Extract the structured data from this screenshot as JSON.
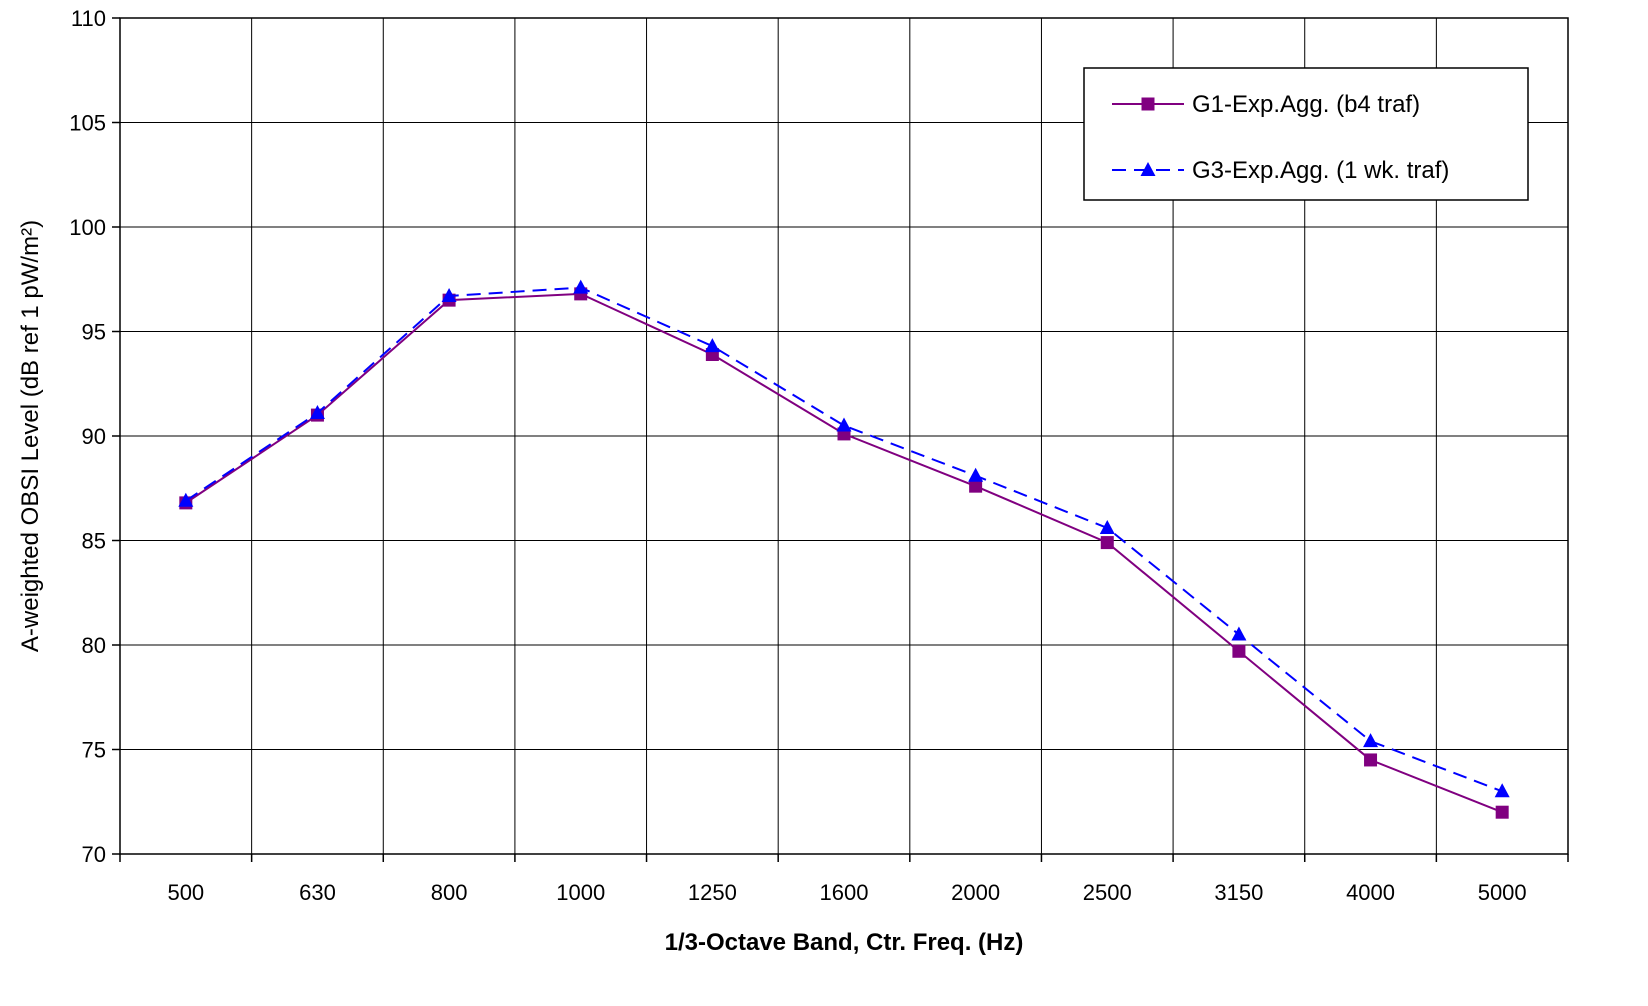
{
  "chart_data": {
    "type": "line",
    "title": "",
    "xlabel": "1/3-Octave Band, Ctr. Freq. (Hz)",
    "ylabel": "A-weighted OBSI Level (dB ref 1 pW/m²)",
    "categories": [
      "500",
      "630",
      "800",
      "1000",
      "1250",
      "1600",
      "2000",
      "2500",
      "3150",
      "4000",
      "5000"
    ],
    "ylim": [
      70,
      110
    ],
    "yticks": [
      "70",
      "75",
      "80",
      "85",
      "90",
      "95",
      "100",
      "105",
      "110"
    ],
    "grid": true,
    "legend_position": "top-right",
    "series": [
      {
        "name": "G1-Exp.Agg. (b4 traf)",
        "color": "#800080",
        "marker": "square",
        "line_style": "solid",
        "values": [
          86.8,
          91.0,
          96.5,
          96.8,
          93.9,
          90.1,
          87.6,
          84.9,
          79.7,
          74.5,
          72.0
        ]
      },
      {
        "name": "G3-Exp.Agg. (1 wk. traf)",
        "color": "#0000ff",
        "marker": "triangle",
        "line_style": "dashed",
        "values": [
          86.9,
          91.1,
          96.7,
          97.1,
          94.3,
          90.5,
          88.1,
          85.6,
          80.5,
          75.4,
          73.0
        ]
      }
    ]
  }
}
